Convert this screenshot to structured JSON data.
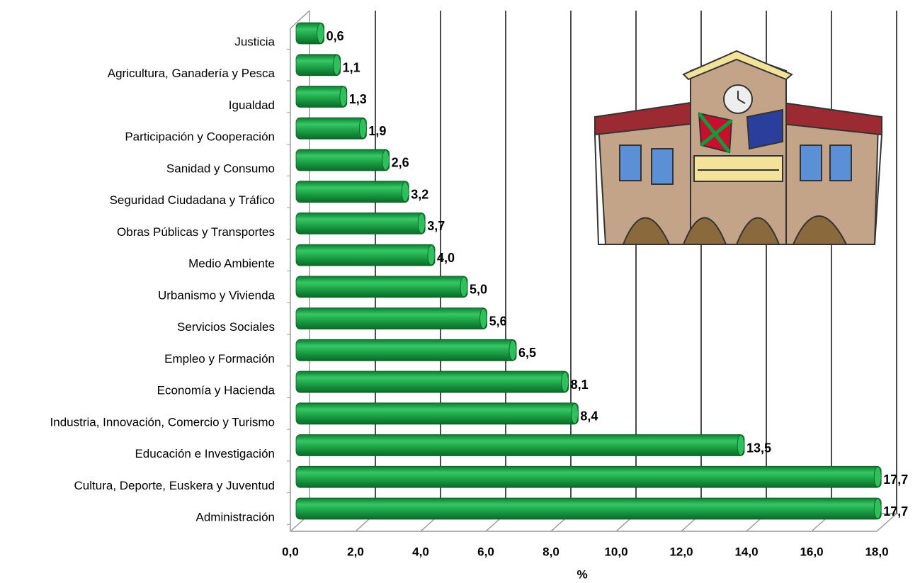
{
  "chart_data": {
    "type": "bar",
    "orientation": "horizontal",
    "x_label": "%",
    "categories": [
      "Justicia",
      "Agricultura, Ganadería y Pesca",
      "Igualdad",
      "Participación y Cooperación",
      "Sanidad y Consumo",
      "Seguridad Ciudadana y Tráfico",
      "Obras Públicas y Transportes",
      "Medio Ambiente",
      "Urbanismo y Vivienda",
      "Servicios Sociales",
      "Empleo y Formación",
      "Economía y Hacienda",
      "Industria, Innovación, Comercio y Turismo",
      "Educación e Investigación",
      "Cultura, Deporte, Euskera y Juventud",
      "Administración"
    ],
    "values": [
      0.6,
      1.1,
      1.3,
      1.9,
      2.6,
      3.2,
      3.7,
      4.0,
      5.0,
      5.6,
      6.5,
      8.1,
      8.4,
      13.5,
      17.7,
      17.7
    ],
    "value_labels": [
      "0,6",
      "1,1",
      "1,3",
      "1,9",
      "2,6",
      "3,2",
      "3,7",
      "4,0",
      "5,0",
      "5,6",
      "6,5",
      "8,1",
      "8,4",
      "13,5",
      "17,7",
      "17,7"
    ],
    "color": "#1fa84a",
    "xlim": [
      0,
      18
    ],
    "xticks": [
      {
        "value": 0,
        "label": "0,0"
      },
      {
        "value": 2,
        "label": "2,0"
      },
      {
        "value": 4,
        "label": "4,0"
      },
      {
        "value": 6,
        "label": "6,0"
      },
      {
        "value": 8,
        "label": "8,0"
      },
      {
        "value": 10,
        "label": "10,0"
      },
      {
        "value": 12,
        "label": "12,0"
      },
      {
        "value": 14,
        "label": "14,0"
      },
      {
        "value": 16,
        "label": "16,0"
      },
      {
        "value": 18,
        "label": "18,0"
      }
    ],
    "grid": true
  }
}
